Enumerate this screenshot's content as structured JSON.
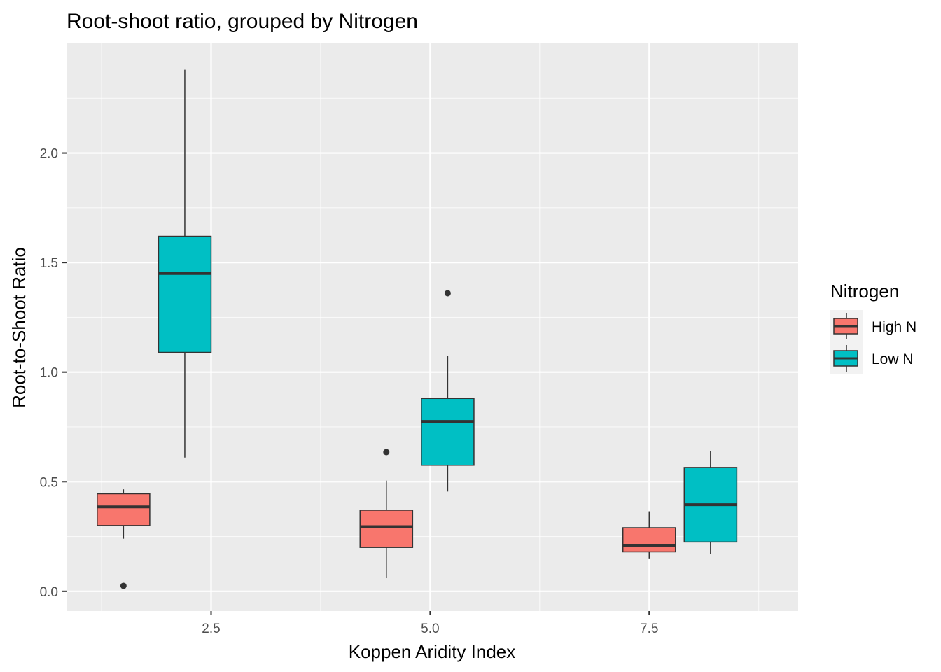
{
  "chart_data": {
    "type": "boxplot",
    "title": "Root-shoot ratio, grouped by Nitrogen",
    "xlabel": "Koppen Aridity Index",
    "ylabel": "Root-to-Shoot Ratio",
    "xlim": [
      0.85,
      9.2
    ],
    "ylim": [
      -0.09,
      2.5
    ],
    "x_ticks": [
      2.5,
      5.0,
      7.5
    ],
    "x_tick_labels": [
      "2.5",
      "5.0",
      "7.5"
    ],
    "y_ticks": [
      0.0,
      0.5,
      1.0,
      1.5,
      2.0
    ],
    "y_tick_labels": [
      "0.0",
      "0.5",
      "1.0",
      "1.5",
      "2.0"
    ],
    "grid": true,
    "legend": {
      "title": "Nitrogen",
      "position": "right",
      "entries": [
        {
          "name": "High N",
          "color": "#f8766d"
        },
        {
          "name": "Low N",
          "color": "#00bfc4"
        }
      ]
    },
    "series": [
      {
        "name": "High N",
        "color": "#f8766d",
        "boxes": [
          {
            "x_center": 1.5,
            "width": 0.6,
            "whisker_low": 0.24,
            "q1": 0.3,
            "median": 0.385,
            "q3": 0.445,
            "whisker_high": 0.465,
            "outliers": [
              0.025
            ]
          },
          {
            "x_center": 4.5,
            "width": 0.6,
            "whisker_low": 0.06,
            "q1": 0.2,
            "median": 0.295,
            "q3": 0.37,
            "whisker_high": 0.505,
            "outliers": [
              0.635
            ]
          },
          {
            "x_center": 7.5,
            "width": 0.6,
            "whisker_low": 0.15,
            "q1": 0.18,
            "median": 0.21,
            "q3": 0.29,
            "whisker_high": 0.365,
            "outliers": []
          }
        ]
      },
      {
        "name": "Low N",
        "color": "#00bfc4",
        "boxes": [
          {
            "x_center": 2.2,
            "width": 0.6,
            "whisker_low": 0.61,
            "q1": 1.09,
            "median": 1.45,
            "q3": 1.62,
            "whisker_high": 2.38,
            "outliers": []
          },
          {
            "x_center": 5.2,
            "width": 0.6,
            "whisker_low": 0.455,
            "q1": 0.575,
            "median": 0.775,
            "q3": 0.88,
            "whisker_high": 1.075,
            "outliers": [
              1.36
            ]
          },
          {
            "x_center": 8.2,
            "width": 0.6,
            "whisker_low": 0.17,
            "q1": 0.225,
            "median": 0.395,
            "q3": 0.565,
            "whisker_high": 0.64,
            "outliers": []
          }
        ]
      }
    ]
  },
  "colors": {
    "panel_background": "#ebebeb",
    "grid_major": "#ffffff",
    "box_outline": "#333333"
  }
}
